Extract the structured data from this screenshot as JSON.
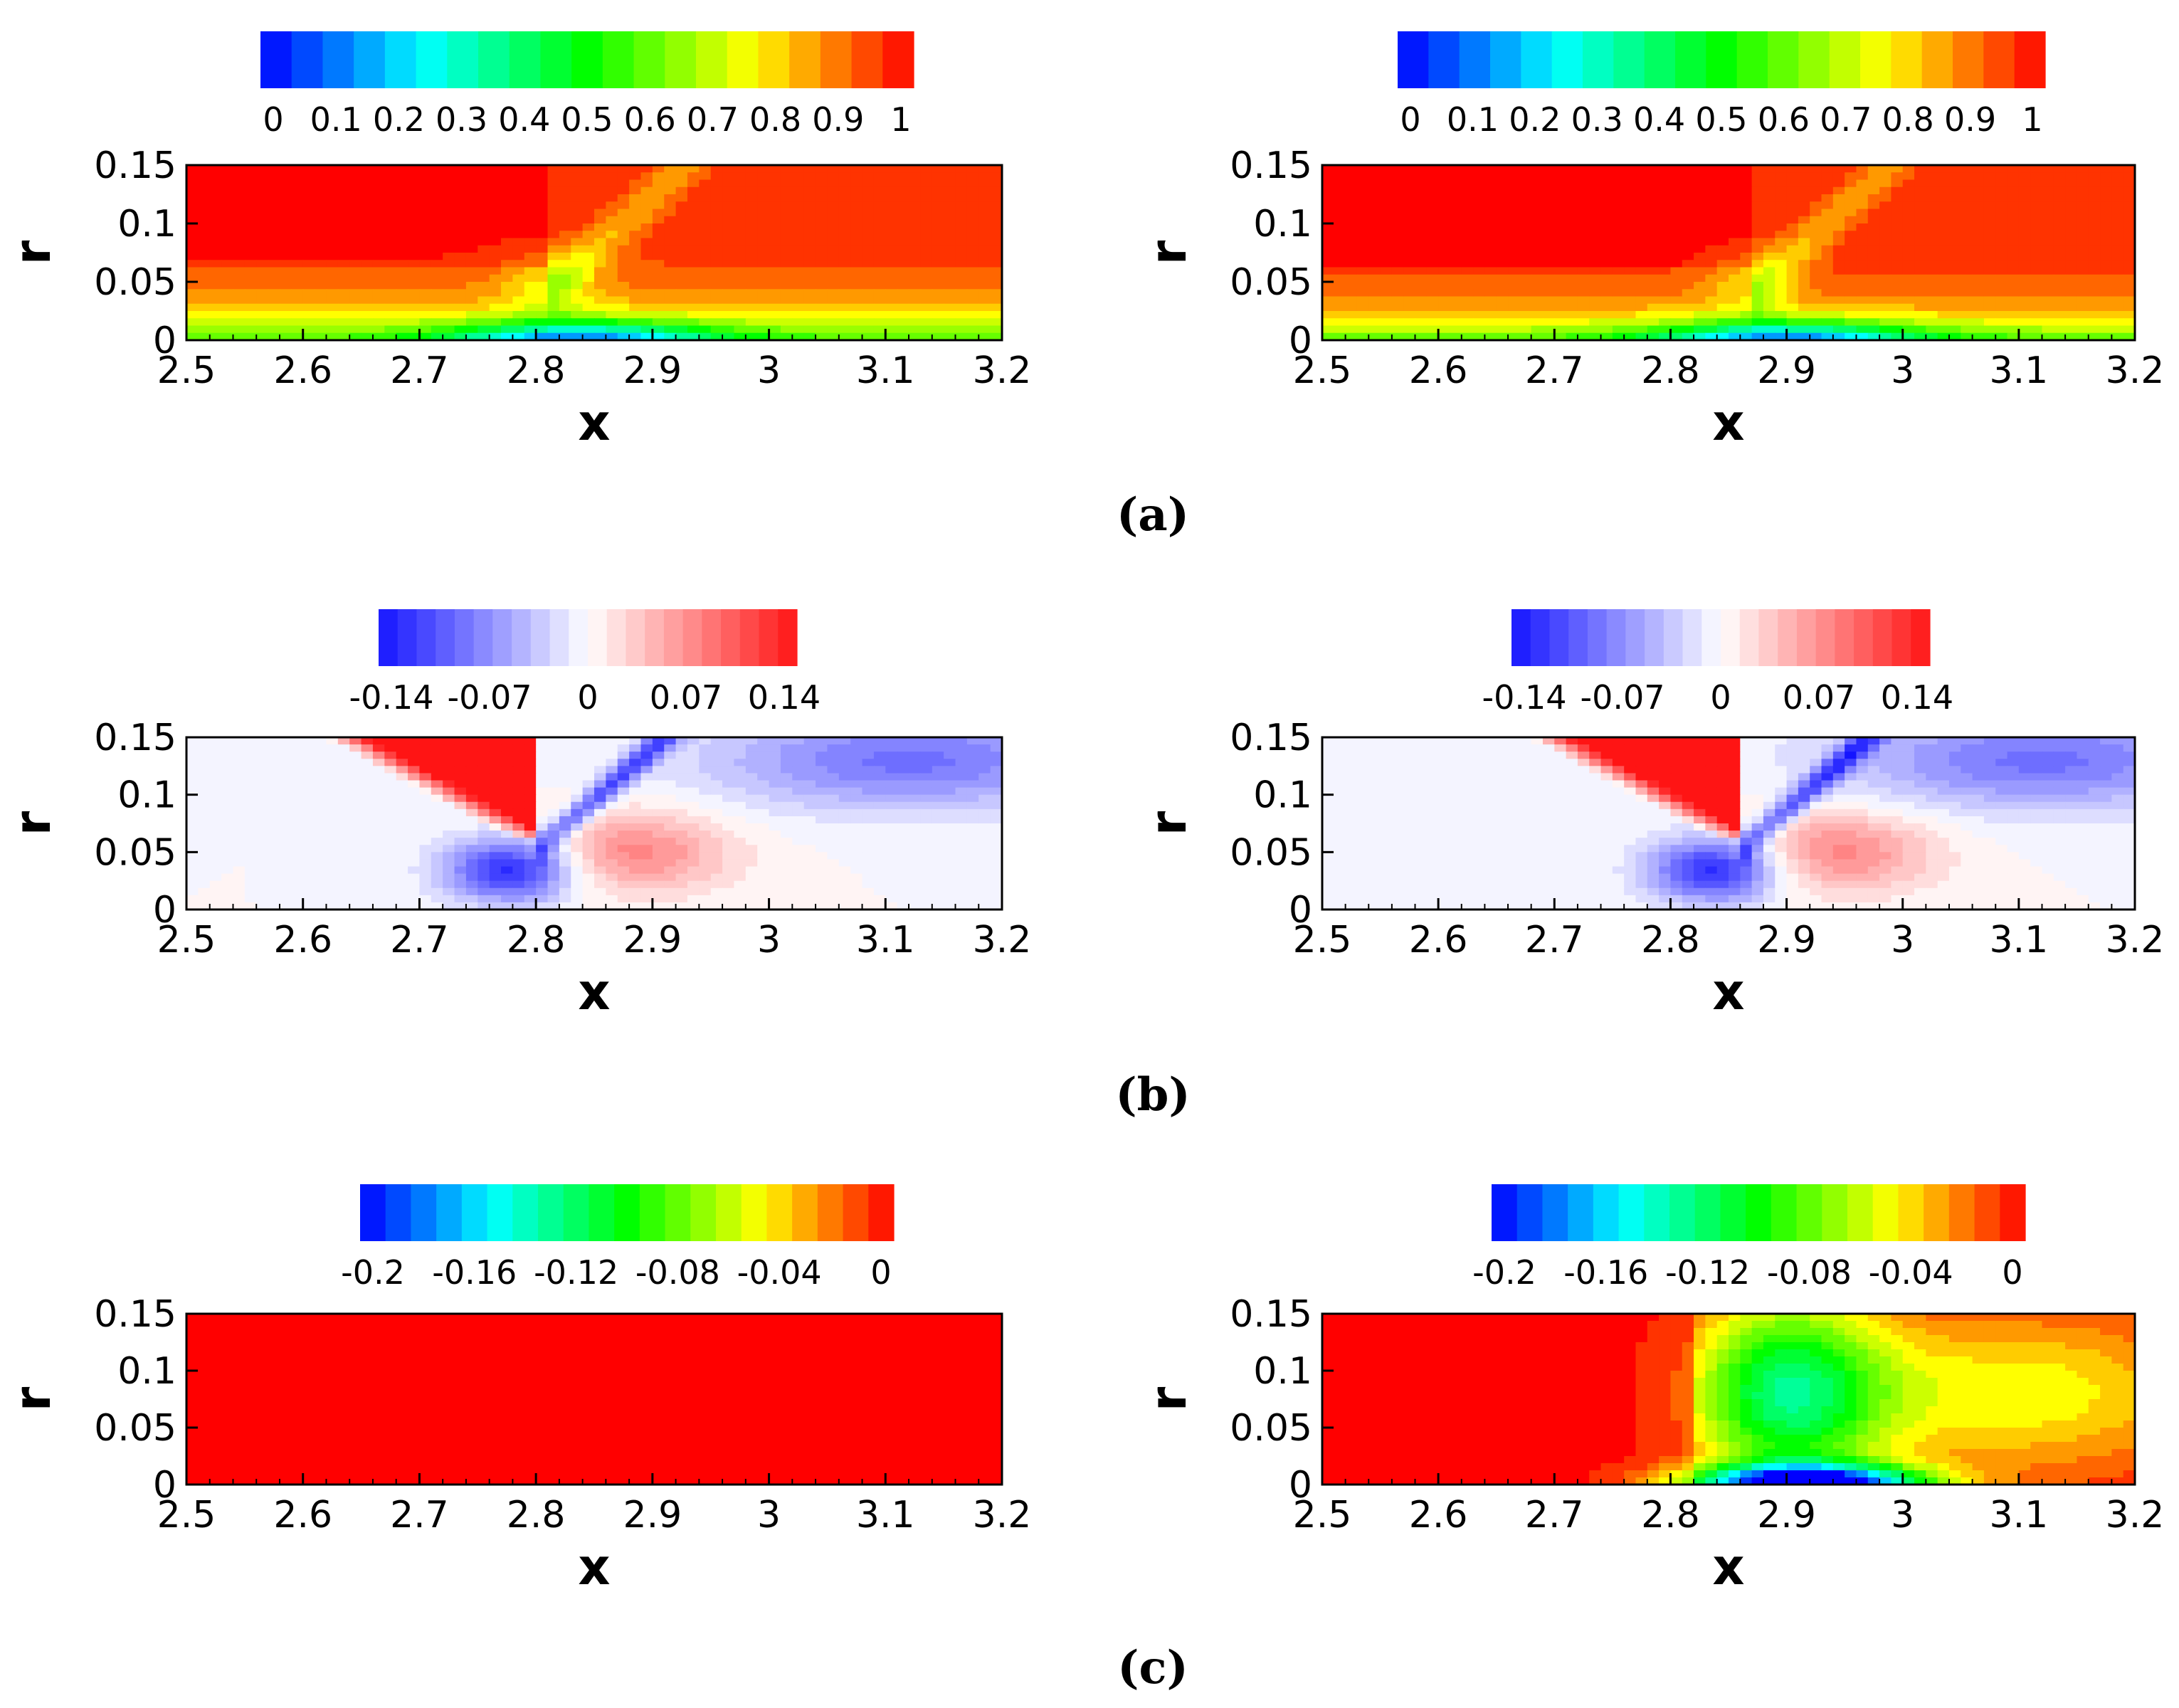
{
  "figure": {
    "rows": [
      {
        "caption": "(a)",
        "colorbar_colors": "rainbow",
        "colorbar_ticks": [
          "0",
          "0.1",
          "0.2",
          "0.3",
          "0.4",
          "0.5",
          "0.6",
          "0.7",
          "0.8",
          "0.9",
          "1"
        ],
        "vmin": 0,
        "vmax": 1
      },
      {
        "caption": "(b)",
        "colorbar_colors": "bluewhitered",
        "colorbar_ticks": [
          "-0.14",
          "-0.07",
          "0",
          "0.07",
          "0.14"
        ],
        "vmin": -0.14,
        "vmax": 0.14
      },
      {
        "caption": "(c)",
        "colorbar_colors": "rainbow",
        "colorbar_ticks": [
          "-0.2",
          "-0.16",
          "-0.12",
          "-0.08",
          "-0.04",
          "0"
        ],
        "vmin": -0.2,
        "vmax": 0
      }
    ]
  },
  "chart_data": [
    {
      "type": "heatmap",
      "panel": "a-left",
      "xlabel": "x",
      "ylabel": "r",
      "xlim": [
        2.5,
        3.2
      ],
      "ylim": [
        0,
        0.15
      ],
      "xticks": [
        "2.5",
        "2.6",
        "2.7",
        "2.8",
        "2.9",
        "3",
        "3.1",
        "3.2"
      ],
      "yticks": [
        "0",
        "0.05",
        "0.1",
        "0.15"
      ],
      "colorbar": {
        "min": 0,
        "max": 1,
        "ticks": [
          "0",
          "0.1",
          "0.2",
          "0.3",
          "0.4",
          "0.5",
          "0.6",
          "0.7",
          "0.8",
          "0.9",
          "1"
        ]
      }
    },
    {
      "type": "heatmap",
      "panel": "a-right",
      "xlabel": "x",
      "ylabel": "r",
      "xlim": [
        2.5,
        3.2
      ],
      "ylim": [
        0,
        0.15
      ],
      "xticks": [
        "2.5",
        "2.6",
        "2.7",
        "2.8",
        "2.9",
        "3",
        "3.1",
        "3.2"
      ],
      "yticks": [
        "0",
        "0.05",
        "0.1",
        "0.15"
      ],
      "colorbar": {
        "min": 0,
        "max": 1,
        "ticks": [
          "0",
          "0.1",
          "0.2",
          "0.3",
          "0.4",
          "0.5",
          "0.6",
          "0.7",
          "0.8",
          "0.9",
          "1"
        ]
      }
    },
    {
      "type": "heatmap",
      "panel": "b-left",
      "xlabel": "x",
      "ylabel": "r",
      "xlim": [
        2.5,
        3.2
      ],
      "ylim": [
        0,
        0.15
      ],
      "xticks": [
        "2.5",
        "2.6",
        "2.7",
        "2.8",
        "2.9",
        "3",
        "3.1",
        "3.2"
      ],
      "yticks": [
        "0",
        "0.05",
        "0.1",
        "0.15"
      ],
      "colorbar": {
        "min": -0.14,
        "max": 0.14,
        "ticks": [
          "-0.14",
          "-0.07",
          "0",
          "0.07",
          "0.14"
        ]
      }
    },
    {
      "type": "heatmap",
      "panel": "b-right",
      "xlabel": "x",
      "ylabel": "r",
      "xlim": [
        2.5,
        3.2
      ],
      "ylim": [
        0,
        0.15
      ],
      "xticks": [
        "2.5",
        "2.6",
        "2.7",
        "2.8",
        "2.9",
        "3",
        "3.1",
        "3.2"
      ],
      "yticks": [
        "0",
        "0.05",
        "0.1",
        "0.15"
      ],
      "colorbar": {
        "min": -0.14,
        "max": 0.14,
        "ticks": [
          "-0.14",
          "-0.07",
          "0",
          "0.07",
          "0.14"
        ]
      }
    },
    {
      "type": "heatmap",
      "panel": "c-left",
      "xlabel": "x",
      "ylabel": "r",
      "xlim": [
        2.5,
        3.2
      ],
      "ylim": [
        0,
        0.15
      ],
      "xticks": [
        "2.5",
        "2.6",
        "2.7",
        "2.8",
        "2.9",
        "3",
        "3.1",
        "3.2"
      ],
      "yticks": [
        "0",
        "0.05",
        "0.1",
        "0.15"
      ],
      "colorbar": {
        "min": -0.2,
        "max": 0,
        "ticks": [
          "-0.2",
          "-0.16",
          "-0.12",
          "-0.08",
          "-0.04",
          "0"
        ]
      }
    },
    {
      "type": "heatmap",
      "panel": "c-right",
      "xlabel": "x",
      "ylabel": "r",
      "xlim": [
        2.5,
        3.2
      ],
      "ylim": [
        0,
        0.15
      ],
      "xticks": [
        "2.5",
        "2.6",
        "2.7",
        "2.8",
        "2.9",
        "3",
        "3.1",
        "3.2"
      ],
      "yticks": [
        "0",
        "0.05",
        "0.1",
        "0.15"
      ],
      "colorbar": {
        "min": -0.2,
        "max": 0,
        "ticks": [
          "-0.2",
          "-0.16",
          "-0.12",
          "-0.08",
          "-0.04",
          "0"
        ]
      }
    }
  ],
  "colors": {
    "axis": "#000000",
    "background": "#ffffff"
  }
}
